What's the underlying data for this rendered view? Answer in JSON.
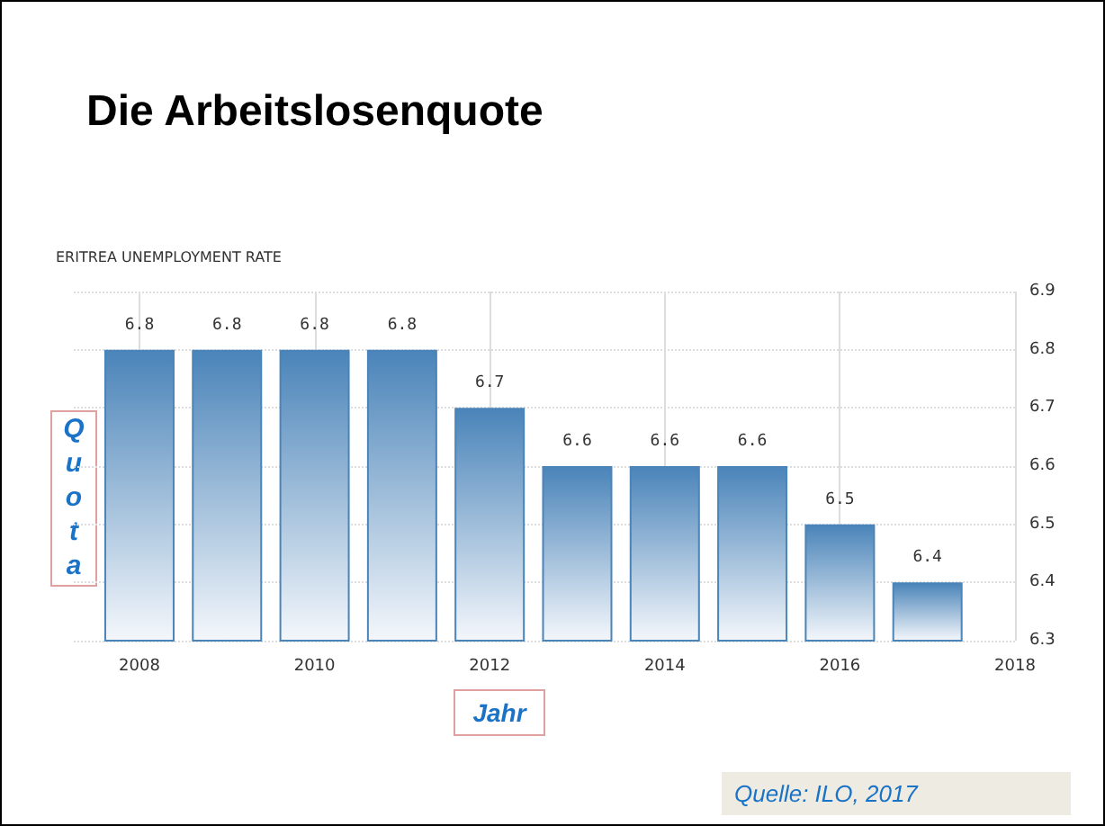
{
  "chart_data": {
    "type": "bar",
    "title": "Die Arbeitslosenquote",
    "subtitle": "ERITREA UNEMPLOYMENT RATE",
    "xlabel": "Jahr",
    "ylabel": "Quota",
    "annotations": [
      "Quelle: ILO, 2017"
    ],
    "x": [
      2008,
      2009,
      2010,
      2011,
      2012,
      2013,
      2014,
      2015,
      2016,
      2017
    ],
    "values": [
      6.8,
      6.8,
      6.8,
      6.8,
      6.7,
      6.6,
      6.6,
      6.6,
      6.5,
      6.4
    ],
    "color": "#4a84b9",
    "data_labels": true,
    "grid": true,
    "xlim": [
      2007.25,
      2018
    ],
    "xticks": [
      2008,
      2010,
      2012,
      2014,
      2016,
      2018
    ],
    "ylim": [
      6.3,
      6.9
    ],
    "yticks": [
      6.3,
      6.4,
      6.5,
      6.6,
      6.7,
      6.8,
      6.9
    ]
  }
}
